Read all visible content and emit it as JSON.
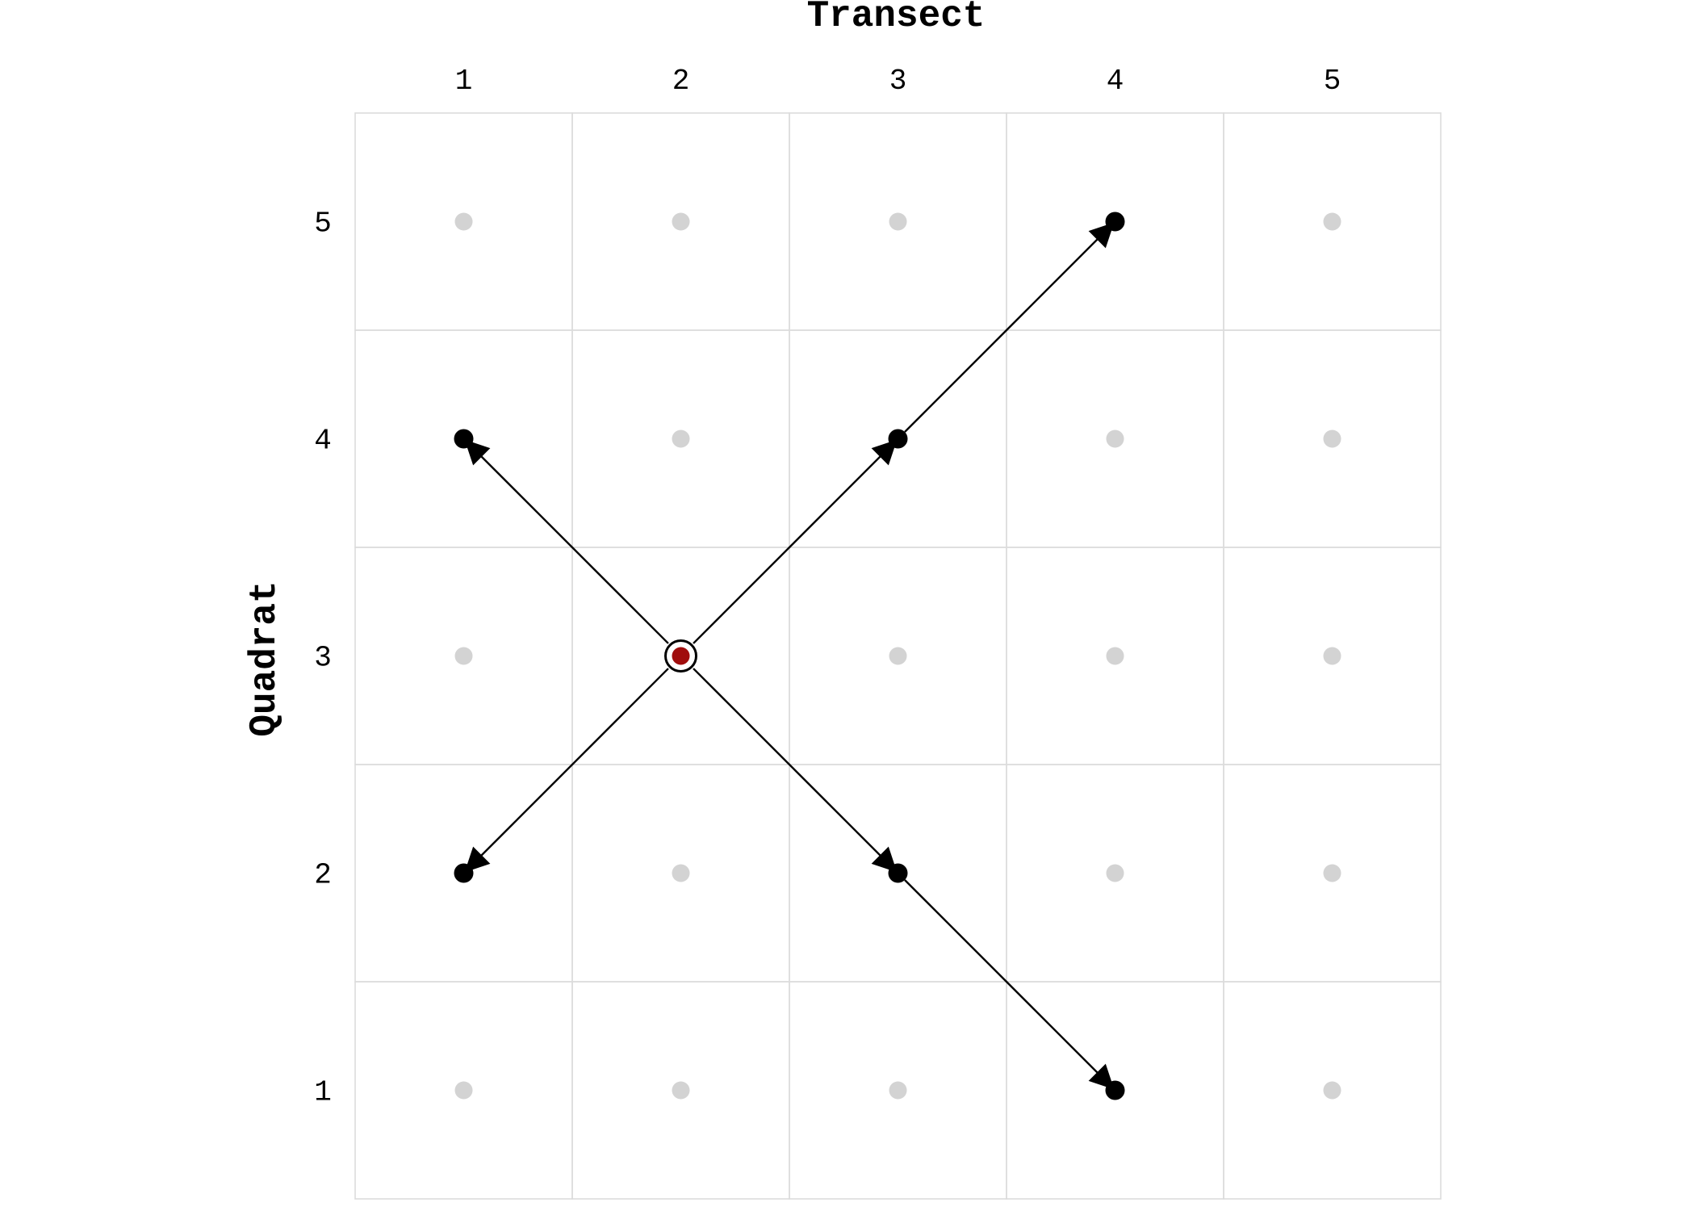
{
  "chart_data": {
    "type": "grid-diagram",
    "x_axis": {
      "title": "Transect",
      "ticks": [
        "1",
        "2",
        "3",
        "4",
        "5"
      ]
    },
    "y_axis": {
      "title": "Quadrat",
      "ticks": [
        "1",
        "2",
        "3",
        "4",
        "5"
      ]
    },
    "grid_size": [
      5,
      5
    ],
    "origin": {
      "transect": 2,
      "quadrat": 3
    },
    "highlighted": [
      {
        "transect": 1,
        "quadrat": 4
      },
      {
        "transect": 3,
        "quadrat": 4
      },
      {
        "transect": 4,
        "quadrat": 5
      },
      {
        "transect": 1,
        "quadrat": 2
      },
      {
        "transect": 3,
        "quadrat": 2
      },
      {
        "transect": 4,
        "quadrat": 1
      }
    ],
    "arrows": [
      {
        "from": [
          2,
          3
        ],
        "to": [
          1,
          4
        ]
      },
      {
        "from": [
          2,
          3
        ],
        "to": [
          3,
          4
        ]
      },
      {
        "from": [
          3,
          4
        ],
        "to": [
          4,
          5
        ]
      },
      {
        "from": [
          2,
          3
        ],
        "to": [
          1,
          2
        ]
      },
      {
        "from": [
          2,
          3
        ],
        "to": [
          3,
          2
        ]
      },
      {
        "from": [
          3,
          2
        ],
        "to": [
          4,
          1
        ]
      }
    ],
    "colors": {
      "background_dot": "#d3d3d3",
      "highlighted_dot": "#000000",
      "origin_fill": "#a00d0d",
      "origin_ring": "#000000",
      "arrow": "#000000",
      "grid_line": "#dcdcdc"
    }
  }
}
